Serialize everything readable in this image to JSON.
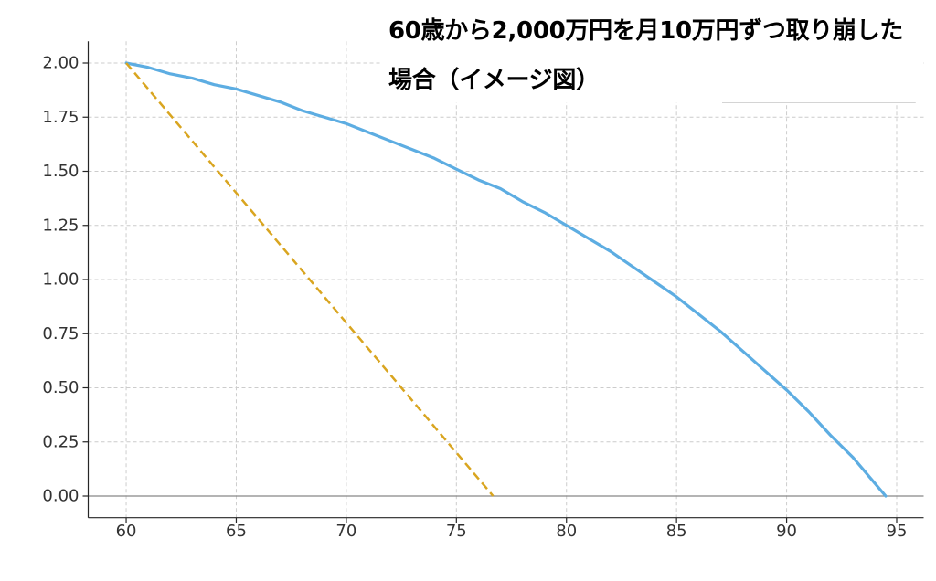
{
  "chart_data": {
    "type": "line",
    "title_lines": [
      "60歳から2,000万円を月10万円ずつ取り崩した",
      "場合（イメージ図）"
    ],
    "x_ticks": [
      60,
      65,
      70,
      75,
      80,
      85,
      90,
      95
    ],
    "y_tick_labels": [
      "0.00",
      "0.25",
      "0.50",
      "0.75",
      "1.00",
      "1.25",
      "1.50",
      "1.75",
      "2.00"
    ],
    "xlim": [
      58.275,
      96.225
    ],
    "ylim": [
      -0.1,
      2.1
    ],
    "grid": true,
    "grid_color": "#cccccc",
    "zero_line": 0,
    "zero_line_color": "#888888",
    "axis_color": "#262626",
    "series": [
      {
        "color": "#5dade2",
        "dashed": false,
        "x": [
          60,
          61,
          62,
          63,
          64,
          65,
          66,
          67,
          68,
          69,
          70,
          71,
          72,
          73,
          74,
          75,
          76,
          77,
          78,
          79,
          80,
          81,
          82,
          83,
          84,
          85,
          86,
          87,
          88,
          89,
          90,
          91,
          92,
          93,
          94,
          94.5
        ],
        "y": [
          2.0,
          1.98,
          1.95,
          1.93,
          1.9,
          1.88,
          1.85,
          1.82,
          1.78,
          1.75,
          1.72,
          1.68,
          1.64,
          1.6,
          1.56,
          1.51,
          1.46,
          1.42,
          1.36,
          1.31,
          1.25,
          1.19,
          1.13,
          1.06,
          0.99,
          0.92,
          0.84,
          0.76,
          0.67,
          0.58,
          0.49,
          0.39,
          0.28,
          0.18,
          0.06,
          0.0
        ]
      },
      {
        "color": "#d9a520",
        "dashed": true,
        "x": [
          60,
          76.67
        ],
        "y": [
          2.0,
          0.0
        ]
      }
    ]
  }
}
